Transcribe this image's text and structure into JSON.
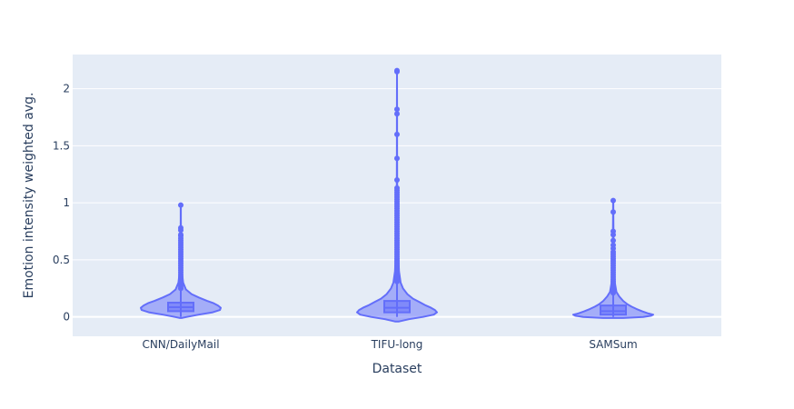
{
  "chart_data": {
    "type": "violin",
    "title": "",
    "xlabel": "Dataset",
    "ylabel": "Emotion intensity weighted avg.",
    "categories": [
      "CNN/DailyMail",
      "TIFU-long",
      "SAMSum"
    ],
    "ylim": [
      -0.17,
      2.3
    ],
    "yticks": [
      0,
      0.5,
      1,
      1.5,
      2
    ],
    "ytick_labels": [
      "0",
      "0.5",
      "1",
      "1.5",
      "2"
    ],
    "grid": true,
    "legend": "none",
    "colors": {
      "plot_bg": "#e5ecf6",
      "grid": "#ffffff",
      "trace": "#636efa",
      "violin_fill": "rgba(99,110,250,0.5)",
      "text": "#2a3f5f"
    },
    "series": [
      {
        "category": "CNN/DailyMail",
        "box": {
          "q1": 0.05,
          "median": 0.085,
          "q3": 0.125,
          "lowerfence": 0.0,
          "upperfence": 0.24
        },
        "kde": [
          [
            -0.01,
            0.02
          ],
          [
            0.0,
            0.15
          ],
          [
            0.02,
            0.45
          ],
          [
            0.04,
            0.8
          ],
          [
            0.06,
            0.98
          ],
          [
            0.08,
            1.0
          ],
          [
            0.1,
            0.93
          ],
          [
            0.12,
            0.82
          ],
          [
            0.14,
            0.66
          ],
          [
            0.17,
            0.45
          ],
          [
            0.2,
            0.27
          ],
          [
            0.24,
            0.13
          ],
          [
            0.3,
            0.06
          ],
          [
            0.4,
            0.025
          ],
          [
            0.55,
            0.012
          ],
          [
            0.7,
            0.006
          ],
          [
            0.85,
            0.003
          ],
          [
            0.98,
            0.002
          ]
        ],
        "outliers": [
          0.25,
          0.27,
          0.29,
          0.31,
          0.33,
          0.35,
          0.37,
          0.39,
          0.41,
          0.43,
          0.45,
          0.47,
          0.49,
          0.51,
          0.53,
          0.55,
          0.57,
          0.59,
          0.61,
          0.63,
          0.65,
          0.67,
          0.69,
          0.71,
          0.72,
          0.76,
          0.78,
          0.98
        ]
      },
      {
        "category": "TIFU-long",
        "box": {
          "q1": 0.04,
          "median": 0.08,
          "q3": 0.14,
          "lowerfence": 0.0,
          "upperfence": 0.3
        },
        "kde": [
          [
            -0.04,
            0.05
          ],
          [
            -0.02,
            0.3
          ],
          [
            0.0,
            0.65
          ],
          [
            0.02,
            0.92
          ],
          [
            0.04,
            1.0
          ],
          [
            0.06,
            0.95
          ],
          [
            0.08,
            0.85
          ],
          [
            0.1,
            0.72
          ],
          [
            0.13,
            0.56
          ],
          [
            0.16,
            0.4
          ],
          [
            0.2,
            0.26
          ],
          [
            0.25,
            0.15
          ],
          [
            0.3,
            0.09
          ],
          [
            0.4,
            0.05
          ],
          [
            0.6,
            0.025
          ],
          [
            0.8,
            0.014
          ],
          [
            1.0,
            0.009
          ],
          [
            1.2,
            0.005
          ],
          [
            1.5,
            0.003
          ],
          [
            1.8,
            0.002
          ],
          [
            2.16,
            0.001
          ]
        ],
        "outliers": [
          0.31,
          0.33,
          0.35,
          0.37,
          0.39,
          0.41,
          0.43,
          0.45,
          0.47,
          0.49,
          0.51,
          0.53,
          0.55,
          0.57,
          0.59,
          0.61,
          0.63,
          0.65,
          0.67,
          0.69,
          0.71,
          0.73,
          0.75,
          0.77,
          0.79,
          0.81,
          0.83,
          0.85,
          0.87,
          0.89,
          0.91,
          0.93,
          0.95,
          0.97,
          0.99,
          1.01,
          1.03,
          1.05,
          1.07,
          1.09,
          1.11,
          1.13,
          1.2,
          1.39,
          1.6,
          1.78,
          1.82,
          2.15,
          2.16
        ]
      },
      {
        "category": "SAMSum",
        "box": {
          "q1": 0.02,
          "median": 0.05,
          "q3": 0.1,
          "lowerfence": 0.0,
          "upperfence": 0.2
        },
        "kde": [
          [
            -0.01,
            0.25
          ],
          [
            0.0,
            0.75
          ],
          [
            0.01,
            0.95
          ],
          [
            0.02,
            1.0
          ],
          [
            0.03,
            0.88
          ],
          [
            0.05,
            0.72
          ],
          [
            0.07,
            0.58
          ],
          [
            0.09,
            0.46
          ],
          [
            0.11,
            0.36
          ],
          [
            0.14,
            0.25
          ],
          [
            0.18,
            0.15
          ],
          [
            0.22,
            0.08
          ],
          [
            0.3,
            0.04
          ],
          [
            0.45,
            0.02
          ],
          [
            0.65,
            0.01
          ],
          [
            0.85,
            0.005
          ],
          [
            1.02,
            0.002
          ]
        ],
        "outliers": [
          0.21,
          0.23,
          0.25,
          0.27,
          0.29,
          0.31,
          0.33,
          0.35,
          0.37,
          0.39,
          0.41,
          0.43,
          0.45,
          0.47,
          0.49,
          0.51,
          0.53,
          0.55,
          0.57,
          0.6,
          0.63,
          0.67,
          0.72,
          0.75,
          0.92,
          1.02
        ]
      }
    ]
  }
}
